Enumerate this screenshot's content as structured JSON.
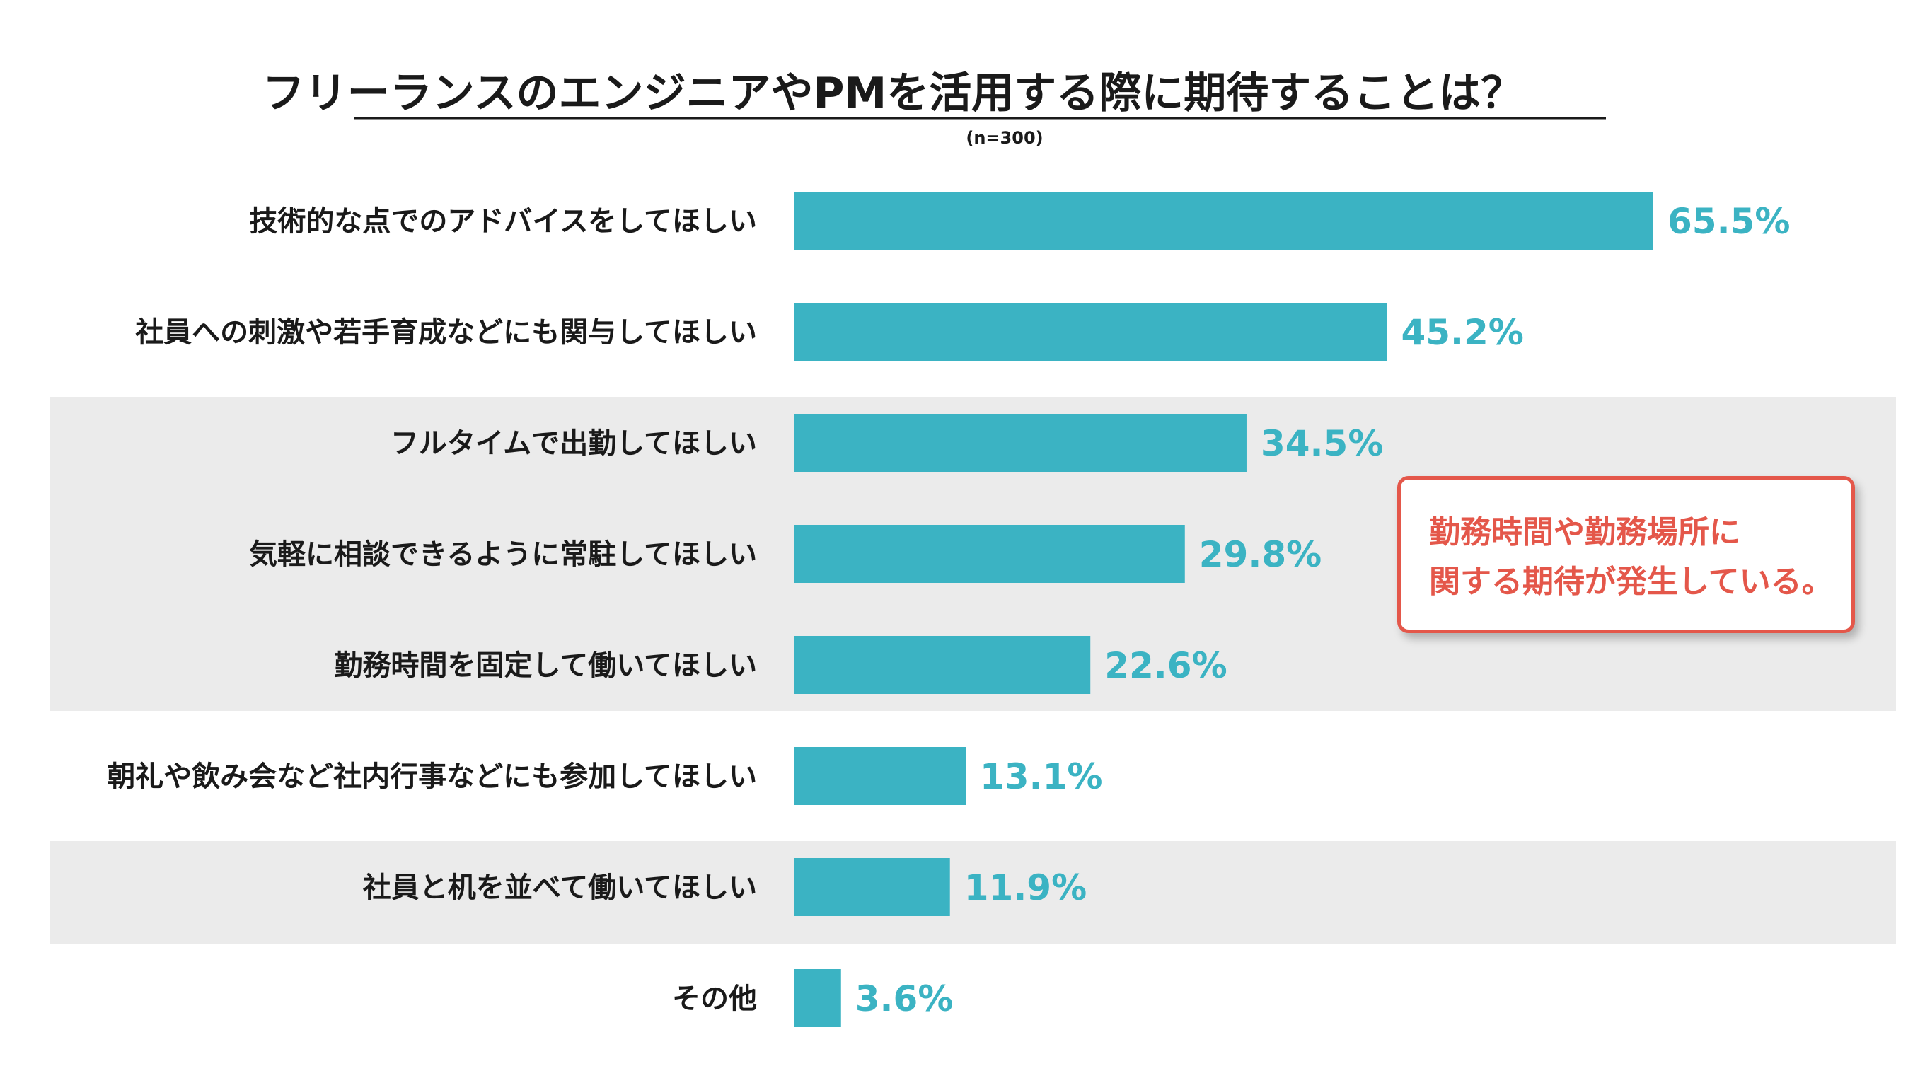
{
  "chart_data": {
    "type": "bar",
    "orientation": "horizontal",
    "title": "フリーランスのエンジニアやPMを活用する際に期待することは？",
    "subtitle": "(n=300)",
    "categories": [
      "技術的な点でのアドバイスをしてほしい",
      "社員への刺激や若手育成などにも関与してほしい",
      "フルタイムで出勤してほしい",
      "気軽に相談できるように常駐してほしい",
      "勤務時間を固定して働いてほしい",
      "朝礼や飲み会など社内行事などにも参加してほしい",
      "社員と机を並べて働いてほしい",
      "その他"
    ],
    "values": [
      65.5,
      45.2,
      34.5,
      29.8,
      22.6,
      13.1,
      11.9,
      3.6
    ],
    "value_labels": [
      "65.5%",
      "45.2%",
      "34.5%",
      "29.8%",
      "22.6%",
      "13.1%",
      "11.9%",
      "3.6%"
    ],
    "unit": "%",
    "highlighted_groups": [
      [
        2,
        3,
        4
      ],
      [
        6
      ]
    ],
    "bar_color": "#3bb3c3",
    "highlight_color": "#ebebeb",
    "grid": false,
    "legend": "none"
  },
  "callout": {
    "lines": [
      "勤務時間や勤務場所に",
      "関する期待が発生している。"
    ],
    "color": "#e4574a"
  }
}
